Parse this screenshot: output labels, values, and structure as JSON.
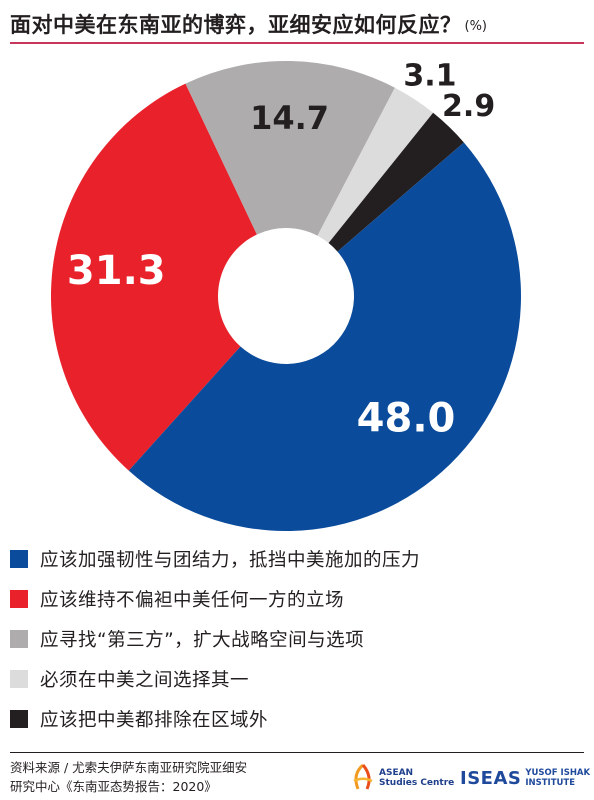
{
  "header": {
    "title": "面对中美在东南亚的博弈，亚细安应如何反应？",
    "unit": "(%)"
  },
  "chart_data": {
    "type": "pie",
    "categories": [
      "应该加强韧性与团结力，抵挡中美施加的压力",
      "应该维持不偏袒中美任何一方的立场",
      "应寻找“第三方”，扩大战略空间与选项",
      "必须在中美之间选择其一",
      "应该把中美都排除在区域外"
    ],
    "values": [
      48.0,
      31.3,
      14.7,
      3.1,
      2.9
    ],
    "labels": [
      "48.0",
      "31.3",
      "14.7",
      "3.1",
      "2.9"
    ],
    "colors": [
      "#0a4b9c",
      "#e8212b",
      "#aeacac",
      "#dddcdc",
      "#231f20"
    ],
    "label_colors": [
      "#ffffff",
      "#ffffff",
      "#231f20",
      "#231f20",
      "#231f20"
    ],
    "legend_placement": "bottom"
  },
  "legend": [
    {
      "label": "应该加强韧性与团结力，抵挡中美施加的压力",
      "color": "#0a4b9c"
    },
    {
      "label": "应该维持不偏袒中美任何一方的立场",
      "color": "#e8212b"
    },
    {
      "label": "应寻找“第三方”，扩大战略空间与选项",
      "color": "#aeacac"
    },
    {
      "label": "必须在中美之间选择其一",
      "color": "#dddcdc"
    },
    {
      "label": "应该把中美都排除在区域外",
      "color": "#231f20"
    }
  ],
  "footer": {
    "source_line1": "资料来源 / 尤索夫伊萨东南亚研究院亚细安",
    "source_line2": "研究中心《东南亚态势报告：2020》",
    "asean_line1": "ASEAN",
    "asean_line2": "Studies Centre",
    "iseas_word": "ISEAS",
    "iseas_line1": "YUSOF ISHAK",
    "iseas_line2": "INSTITUTE"
  }
}
